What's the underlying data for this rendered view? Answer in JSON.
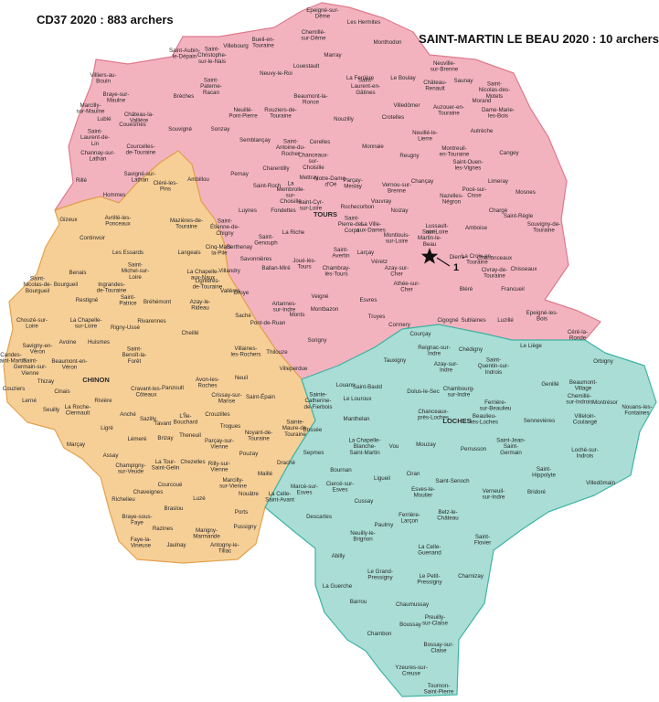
{
  "header": {
    "left_title": "CD37 2020 : 883 archers",
    "right_title": "SAINT-MARTIN LE BEAU 2020 : 10 archers"
  },
  "map": {
    "marker_label": "1",
    "regions": [
      {
        "color": "#f2b3bf",
        "border": "#e07a8e",
        "communes": [
          "Epeigné-sur-Dême",
          "Les Hermites",
          "Chemillé-sur-Dême",
          "Bueil-en-Touraine",
          "Villebourg",
          "Saint-Christophe-sur-le-Nais",
          "Saint-Aubin-le-Dépain",
          "Marray",
          "Monthodon",
          "La Ferrière",
          "Louestault",
          "Neuvy-le-Roi",
          "Saint-Paterne-Racan",
          "Villiers-au-Bouin",
          "Braye-sur-Maulne",
          "Marcilly-sur-Maulne",
          "Couesmes",
          "Brèches",
          "Saint-Laurent-en-Gâtines",
          "Le Boulay",
          "Neuville-sur-Brenne",
          "Château-Renault",
          "Saunay",
          "Saint-Nicolas-des-Motets",
          "Beaumont-la-Ronce",
          "Nouzilly",
          "Neuillé-Pont-Pierre",
          "Rouziers-de-Touraine",
          "Villedômer",
          "Auzouer-en-Touraine",
          "Morand",
          "Dame-Marie-les-Bois",
          "Lublé",
          "Château-la-Vallière",
          "Sonzay",
          "Souvigné",
          "Saint-Laurent-de-Lin",
          "Courcelles-de-Touraine",
          "Semblançay",
          "Saint-Antoine-du-Rocher",
          "Cerelles",
          "Monnaie",
          "Crotelles",
          "Neuillé-le-Lierre",
          "Autrèche",
          "Montreuil-en-Touraine",
          "Saint-Ouen-les-Vignes",
          "Cangey",
          "Channay-sur-Lathan",
          "Rillé",
          "Savigné-sur-Lathan",
          "Hommes",
          "Cléré-les-Pins",
          "Ambillou",
          "Pernay",
          "Charentilly",
          "Chanceaux-sur-Choisille",
          "Notre-Dame-d'Oé",
          "Reugny",
          "Chançay",
          "Vernou-sur-Brenne",
          "Noizay",
          "Nazelles-Négron",
          "Pocé-sur-Cisse",
          "Limeray",
          "Mosnes",
          "Mettray",
          "Saint-Roch",
          "La Membrolle-sur-Choisille",
          "Parçay-Meslay",
          "Rochecorbon",
          "Vouvray",
          "Luynes",
          "Fondettes",
          "Saint-Cyr-sur-Loire",
          "TOURS",
          "Saint-Pierre-des-Corps",
          "La Ville-aux-Dames",
          "Montlouis-sur-Loire",
          "Lussault-sur-Loire",
          "Amboise",
          "Chargé",
          "Saint-Règle",
          "Souvigny-de-Touraine",
          "Saint-Étienne-de-Chigny",
          "Berthenay",
          "La Riche",
          "Saint-Genouph",
          "Joué-lès-Tours",
          "Saint-Avertin",
          "Larçay",
          "Véretz",
          "Azay-sur-Cher",
          "Saint-Martin-le-Beau",
          "Dierre",
          "La Croix-en-Touraine",
          "Chenonceaux",
          "Civray-de-Touraine",
          "Chisseaux",
          "Savonnières",
          "Ballan-Miré",
          "Chambray-lès-Tours",
          "Athée-sur-Cher",
          "Bléré",
          "Francueil",
          "Villandry",
          "Druye",
          "Artannes-sur-Indre",
          "Pont-de-Ruan",
          "Monts",
          "Veigné",
          "Esvres",
          "Montbazon",
          "Truyes",
          "Cormery",
          "Cigogné",
          "Sublaines",
          "Luzillé",
          "Epeigné-les-Bois",
          "Céré-la-Ronde",
          "Sorigny",
          "Courçay",
          "Villeperdue"
        ]
      },
      {
        "color": "#f6cf97",
        "border": "#e3a24d",
        "communes": [
          "Gizeux",
          "Avrillé-les-Ponceaux",
          "Mazières-de-Touraine",
          "Continvoir",
          "Langeais",
          "Les Essards",
          "Cinq-Mars-la-Pile",
          "Benais",
          "Saint-Michel-sur-Loire",
          "Ingrandes-de-Touraine",
          "La Chapelle-aux-Naux",
          "Saint-Nicolas-de-Bourgueil",
          "Bourgueil",
          "Restigné",
          "Saint-Patrice",
          "Bréhémont",
          "Lignières-de-Touraine",
          "Vallères",
          "Azay-le-Rideau",
          "Rivarennes",
          "Rigny-Ussé",
          "Chouzé-sur-Loire",
          "La Chapelle-sur-Loire",
          "Avoine",
          "Huismes",
          "Cheillé",
          "Savigny-en-Véron",
          "Candes-Saint-Martin",
          "Saint-Germain-sur-Vienne",
          "Beaumont-en-Véron",
          "Saint-Benoît-la-Forêt",
          "Villaines-les-Rochers",
          "Saché",
          "Thilouze",
          "Thizay",
          "CHINON",
          "Couziers",
          "Cinais",
          "Lerné",
          "Seuilly",
          "Cravant-les-Côteaux",
          "Rivière",
          "La Roche-Clermault",
          "Avon-les-Roches",
          "Panzoult",
          "Crissay-sur-Manse",
          "Neuil",
          "Saint-Épain",
          "Sainte-Catherine-de-Fierbois",
          "Anché",
          "Sazilly",
          "Tavant",
          "L'Île-Bouchard",
          "Crouzilles",
          "Ligré",
          "Marçay",
          "Lémeré",
          "Brizay",
          "Theneuil",
          "Trogues",
          "Parçay-sur-Vienne",
          "Noyant-de-Touraine",
          "Sainte-Maure-de-Touraine",
          "Pouzay",
          "Assay",
          "Champigny-sur-Veude",
          "La Tour-Saint-Gelin",
          "Chezelles",
          "Rilly-sur-Vienne",
          "Marcilly-sur-Vienne",
          "Nouâtre",
          "Maillé",
          "Draché",
          "Chaveignes",
          "Courcoué",
          "Richelieu",
          "Luzé",
          "Ports",
          "Pussigny",
          "Braslou",
          "Braye-sous-Faye",
          "Razines",
          "Marigny-Marmande",
          "Faye-la-Vineuse",
          "Jaulnay",
          "Antogny-le-Tillac"
        ]
      },
      {
        "color": "#a9ddd5",
        "border": "#3eb5a6",
        "communes": [
          "Reignac-sur-Indre",
          "Chédigny",
          "Le Liège",
          "Orbigny",
          "Tauxigny",
          "Azay-sur-Indre",
          "Saint-Quentin-sur-Indrois",
          "Louans",
          "Saint-Bauld",
          "Dolus-le-Sec",
          "Chambourg-sur-Indre",
          "Genillé",
          "Beaumont-Village",
          "Chemillé-sur-Indrois",
          "Montrésor",
          "Le Louroux",
          "Ferrière-sur-Beaulieu",
          "Villeloin-Coulangé",
          "Nouans-les-Fontaines",
          "Manthelan",
          "Chanceaux-près-Loches",
          "Beaulieu-lès-Loches",
          "LOCHES",
          "Sennevières",
          "Bossée",
          "La Chapelle-Blanche-Saint-Martin",
          "Vou",
          "Mouzay",
          "Perrusson",
          "Saint-Jean-Saint-Germain",
          "Loché-sur-Indrois",
          "Sepmes",
          "Bournan",
          "Ciran",
          "Saint-Senoch",
          "Saint-Hippolyte",
          "Villedômain",
          "Marcé-sur-Esves",
          "Ciercé-sur-Esves",
          "Ligueil",
          "Esves-le-Moutier",
          "Verneuil-sur-Indre",
          "Bridoré",
          "La Celle-Saint-Avant",
          "Cussay",
          "Descartes",
          "Ferrière-Larçon",
          "Betz-le-Château",
          "Paulmy",
          "Neuilly-le-Brignon",
          "Saint-Flovier",
          "Abilly",
          "La Celle-Guenand",
          "Le Grand-Pressigny",
          "Le Petit-Pressigny",
          "Charnizay",
          "La Guerche",
          "Barrou",
          "Chaumussay",
          "Preuilly-sur-Claise",
          "Chambon",
          "Boussay",
          "Bossay-sur-Claise",
          "Yzeures-sur-Creuse",
          "Tournon-Saint-Pierre"
        ]
      }
    ]
  }
}
